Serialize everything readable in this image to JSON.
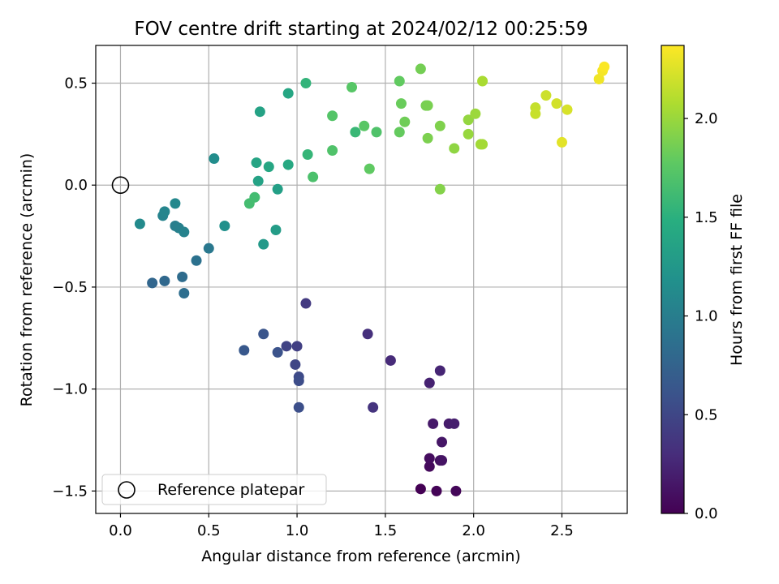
{
  "chart_data": {
    "type": "scatter",
    "title": "FOV centre drift starting at 2024/02/12 00:25:59",
    "xlabel": "Angular distance from reference (arcmin)",
    "ylabel": "Rotation from reference (arcmin)",
    "xlim": [
      -0.14,
      2.87
    ],
    "ylim": [
      -1.61,
      0.685
    ],
    "x_ticks": [
      0.0,
      0.5,
      1.0,
      1.5,
      2.0,
      2.5
    ],
    "x_tick_labels": [
      "0.0",
      "0.5",
      "1.0",
      "1.5",
      "2.0",
      "2.5"
    ],
    "y_ticks": [
      -1.5,
      -1.0,
      -0.5,
      0.0,
      0.5
    ],
    "y_tick_labels": [
      "−1.5",
      "−1.0",
      "−0.5",
      "0.0",
      "0.5"
    ],
    "grid": true,
    "legend": {
      "position": "lower-left",
      "entries": [
        "Reference platepar"
      ]
    },
    "colormap": "viridis",
    "colorbar": {
      "label": "Hours from first FF file",
      "range": [
        0.0,
        2.37
      ],
      "ticks": [
        0.0,
        0.5,
        1.0,
        1.5,
        2.0
      ],
      "tick_labels": [
        "0.0",
        "0.5",
        "1.0",
        "1.5",
        "2.0"
      ]
    },
    "reference_point": {
      "x": 0.0,
      "y": 0.0,
      "label": "Reference platepar",
      "marker": "open-circle",
      "color": "#000000"
    },
    "points": [
      {
        "x": 1.7,
        "y": -1.49,
        "c": 0.0
      },
      {
        "x": 1.79,
        "y": -1.5,
        "c": 0.02
      },
      {
        "x": 1.9,
        "y": -1.5,
        "c": 0.04
      },
      {
        "x": 1.75,
        "y": -1.38,
        "c": 0.06
      },
      {
        "x": 1.75,
        "y": -1.34,
        "c": 0.08
      },
      {
        "x": 1.81,
        "y": -1.35,
        "c": 0.1
      },
      {
        "x": 1.82,
        "y": -1.35,
        "c": 0.12
      },
      {
        "x": 1.82,
        "y": -1.26,
        "c": 0.14
      },
      {
        "x": 1.77,
        "y": -1.17,
        "c": 0.16
      },
      {
        "x": 1.86,
        "y": -1.17,
        "c": 0.18
      },
      {
        "x": 1.89,
        "y": -1.17,
        "c": 0.2
      },
      {
        "x": 1.75,
        "y": -0.97,
        "c": 0.22
      },
      {
        "x": 1.81,
        "y": -0.91,
        "c": 0.24
      },
      {
        "x": 1.53,
        "y": -0.86,
        "c": 0.28
      },
      {
        "x": 1.4,
        "y": -0.73,
        "c": 0.32
      },
      {
        "x": 1.43,
        "y": -1.09,
        "c": 0.35
      },
      {
        "x": 1.05,
        "y": -0.58,
        "c": 0.4
      },
      {
        "x": 1.0,
        "y": -0.79,
        "c": 0.44
      },
      {
        "x": 0.94,
        "y": -0.79,
        "c": 0.47
      },
      {
        "x": 0.99,
        "y": -0.88,
        "c": 0.5
      },
      {
        "x": 1.01,
        "y": -0.94,
        "c": 0.53
      },
      {
        "x": 1.01,
        "y": -0.96,
        "c": 0.55
      },
      {
        "x": 1.01,
        "y": -1.09,
        "c": 0.57
      },
      {
        "x": 0.89,
        "y": -0.82,
        "c": 0.6
      },
      {
        "x": 0.81,
        "y": -0.73,
        "c": 0.62
      },
      {
        "x": 0.7,
        "y": -0.81,
        "c": 0.65
      },
      {
        "x": 0.18,
        "y": -0.48,
        "c": 0.78
      },
      {
        "x": 0.25,
        "y": -0.47,
        "c": 0.8
      },
      {
        "x": 0.35,
        "y": -0.45,
        "c": 0.83
      },
      {
        "x": 0.36,
        "y": -0.53,
        "c": 0.85
      },
      {
        "x": 0.43,
        "y": -0.37,
        "c": 0.88
      },
      {
        "x": 0.5,
        "y": -0.31,
        "c": 0.95
      },
      {
        "x": 0.31,
        "y": -0.2,
        "c": 1.0
      },
      {
        "x": 0.33,
        "y": -0.21,
        "c": 1.02
      },
      {
        "x": 0.36,
        "y": -0.23,
        "c": 1.04
      },
      {
        "x": 0.24,
        "y": -0.15,
        "c": 1.05
      },
      {
        "x": 0.25,
        "y": -0.13,
        "c": 1.07
      },
      {
        "x": 0.31,
        "y": -0.09,
        "c": 1.1
      },
      {
        "x": 0.11,
        "y": -0.19,
        "c": 1.12
      },
      {
        "x": 0.53,
        "y": 0.13,
        "c": 1.15
      },
      {
        "x": 0.59,
        "y": -0.2,
        "c": 1.18
      },
      {
        "x": 0.81,
        "y": -0.29,
        "c": 1.27
      },
      {
        "x": 0.88,
        "y": -0.22,
        "c": 1.3
      },
      {
        "x": 0.89,
        "y": -0.02,
        "c": 1.33
      },
      {
        "x": 0.78,
        "y": 0.02,
        "c": 1.36
      },
      {
        "x": 0.77,
        "y": 0.11,
        "c": 1.38
      },
      {
        "x": 0.84,
        "y": 0.09,
        "c": 1.4
      },
      {
        "x": 0.95,
        "y": 0.1,
        "c": 1.42
      },
      {
        "x": 0.79,
        "y": 0.36,
        "c": 1.36
      },
      {
        "x": 0.95,
        "y": 0.45,
        "c": 1.4
      },
      {
        "x": 1.05,
        "y": 0.5,
        "c": 1.54
      },
      {
        "x": 1.06,
        "y": 0.15,
        "c": 1.56
      },
      {
        "x": 1.09,
        "y": 0.04,
        "c": 1.68
      },
      {
        "x": 0.76,
        "y": -0.06,
        "c": 1.63
      },
      {
        "x": 0.73,
        "y": -0.09,
        "c": 1.64
      },
      {
        "x": 1.2,
        "y": 0.17,
        "c": 1.7
      },
      {
        "x": 1.2,
        "y": 0.34,
        "c": 1.72
      },
      {
        "x": 1.31,
        "y": 0.48,
        "c": 1.74
      },
      {
        "x": 1.33,
        "y": 0.26,
        "c": 1.58
      },
      {
        "x": 1.38,
        "y": 0.29,
        "c": 1.75
      },
      {
        "x": 1.41,
        "y": 0.08,
        "c": 1.78
      },
      {
        "x": 1.45,
        "y": 0.26,
        "c": 1.7
      },
      {
        "x": 1.58,
        "y": 0.51,
        "c": 1.79
      },
      {
        "x": 1.58,
        "y": 0.26,
        "c": 1.8
      },
      {
        "x": 1.59,
        "y": 0.4,
        "c": 1.82
      },
      {
        "x": 1.61,
        "y": 0.31,
        "c": 1.84
      },
      {
        "x": 1.7,
        "y": 0.57,
        "c": 1.86
      },
      {
        "x": 1.73,
        "y": 0.39,
        "c": 1.87
      },
      {
        "x": 1.74,
        "y": 0.39,
        "c": 1.88
      },
      {
        "x": 1.74,
        "y": 0.23,
        "c": 1.89
      },
      {
        "x": 1.81,
        "y": 0.29,
        "c": 1.9
      },
      {
        "x": 1.81,
        "y": -0.02,
        "c": 1.92
      },
      {
        "x": 1.89,
        "y": 0.18,
        "c": 1.96
      },
      {
        "x": 1.97,
        "y": 0.32,
        "c": 1.98
      },
      {
        "x": 1.97,
        "y": 0.25,
        "c": 1.99
      },
      {
        "x": 2.01,
        "y": 0.35,
        "c": 2.01
      },
      {
        "x": 2.04,
        "y": 0.2,
        "c": 2.03
      },
      {
        "x": 2.05,
        "y": 0.2,
        "c": 2.04
      },
      {
        "x": 2.05,
        "y": 0.51,
        "c": 2.06
      },
      {
        "x": 2.35,
        "y": 0.38,
        "c": 2.16
      },
      {
        "x": 2.35,
        "y": 0.35,
        "c": 2.17
      },
      {
        "x": 2.41,
        "y": 0.44,
        "c": 2.19
      },
      {
        "x": 2.47,
        "y": 0.4,
        "c": 2.21
      },
      {
        "x": 2.5,
        "y": 0.21,
        "c": 2.27
      },
      {
        "x": 2.53,
        "y": 0.37,
        "c": 2.23
      },
      {
        "x": 2.71,
        "y": 0.52,
        "c": 2.32
      },
      {
        "x": 2.73,
        "y": 0.56,
        "c": 2.34
      },
      {
        "x": 2.74,
        "y": 0.58,
        "c": 2.36
      }
    ]
  }
}
